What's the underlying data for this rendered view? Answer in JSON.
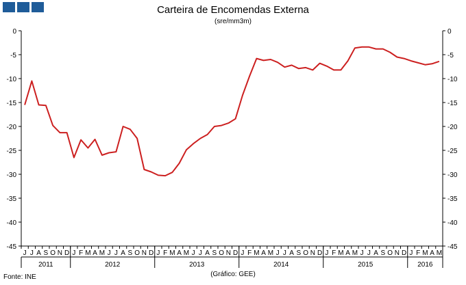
{
  "header": {
    "title": "Carteira de Encomendas  Externa",
    "subtitle": "(sre/mm3m)"
  },
  "logo": {
    "color": "#1f5c99",
    "squares": 3
  },
  "footer": {
    "source": "Fonte:  INE",
    "credit": "(Gráfico:  GEE)"
  },
  "chart_data": {
    "type": "line",
    "title": "Carteira de Encomendas  Externa",
    "subtitle": "(sre/mm3m)",
    "ylim": [
      -45,
      0
    ],
    "yticks": [
      "0",
      "-5",
      "-10",
      "-15",
      "-20",
      "-25",
      "-30",
      "-35",
      "-40",
      "-45"
    ],
    "grid": false,
    "line_color": "#cc1f1f",
    "month_labels": [
      "J",
      "J",
      "A",
      "S",
      "O",
      "N",
      "D",
      "J",
      "F",
      "M",
      "A",
      "M",
      "J",
      "J",
      "A",
      "S",
      "O",
      "N",
      "D",
      "J",
      "F",
      "M",
      "A",
      "M",
      "J",
      "J",
      "A",
      "S",
      "O",
      "N",
      "D",
      "J",
      "F",
      "M",
      "A",
      "M",
      "J",
      "J",
      "A",
      "S",
      "O",
      "N",
      "D",
      "J",
      "F",
      "M",
      "A",
      "M",
      "J",
      "J",
      "A",
      "S",
      "O",
      "N",
      "D",
      "J",
      "F",
      "M",
      "A",
      "M"
    ],
    "years": [
      {
        "label": "2011",
        "start": 0,
        "count": 7
      },
      {
        "label": "2012",
        "start": 7,
        "count": 12
      },
      {
        "label": "2013",
        "start": 19,
        "count": 12
      },
      {
        "label": "2014",
        "start": 31,
        "count": 12
      },
      {
        "label": "2015",
        "start": 43,
        "count": 12
      },
      {
        "label": "2016",
        "start": 55,
        "count": 5
      }
    ],
    "series": [
      {
        "values": [
          -15.5,
          -10.5,
          -15.5,
          -15.6,
          -19.8,
          -21.3,
          -21.3,
          -26.5,
          -22.8,
          -24.5,
          -22.7,
          -26.0,
          -25.5,
          -25.3,
          -20.0,
          -20.6,
          -22.5,
          -29.0,
          -29.5,
          -30.2,
          -30.3,
          -29.6,
          -27.7,
          -24.9,
          -23.6,
          -22.5,
          -21.7,
          -20.0,
          -19.8,
          -19.3,
          -18.4,
          -13.5,
          -9.5,
          -5.8,
          -6.2,
          -6.0,
          -6.6,
          -7.6,
          -7.2,
          -7.9,
          -7.7,
          -8.2,
          -6.8,
          -7.4,
          -8.2,
          -8.2,
          -6.3,
          -3.6,
          -3.4,
          -3.4,
          -3.8,
          -3.8,
          -4.5,
          -5.5,
          -5.8,
          -6.3,
          -6.7,
          -7.1,
          -6.9,
          -6.4
        ]
      }
    ]
  }
}
